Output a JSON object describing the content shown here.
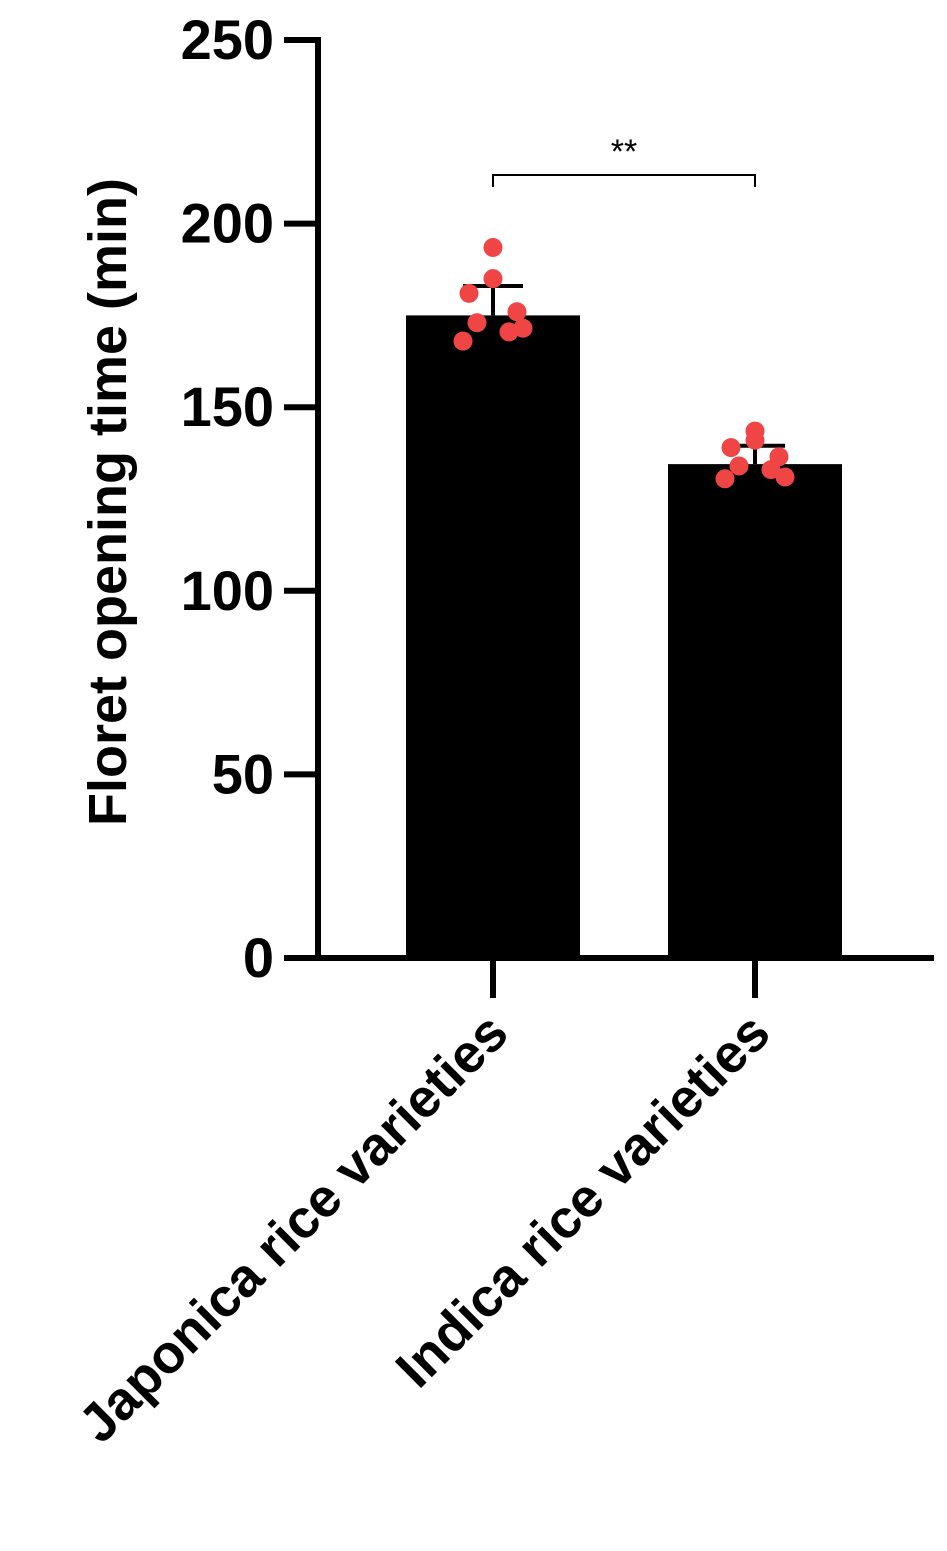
{
  "chart_data": {
    "type": "bar",
    "ylabel": "Floret opening time (min)",
    "xlabel": "",
    "ylim": [
      0,
      250
    ],
    "yticks": [
      0,
      50,
      100,
      150,
      200,
      250
    ],
    "categories": [
      "Japonica rice varieties",
      "Indica rice varieties"
    ],
    "values": [
      175,
      134.5
    ],
    "error_upper": [
      183,
      139.5
    ],
    "points": [
      [
        193.5,
        185,
        181,
        176,
        173,
        170.5,
        171.5,
        168
      ],
      [
        143.5,
        141,
        139,
        136.5,
        134,
        133,
        131,
        130.5
      ]
    ],
    "significance": {
      "label": "**",
      "between": [
        "Japonica rice varieties",
        "Indica rice varieties"
      ]
    },
    "grid": false,
    "legend": "none",
    "colors": {
      "bar": "#000000",
      "point": "#f04545",
      "axis": "#000000"
    }
  }
}
